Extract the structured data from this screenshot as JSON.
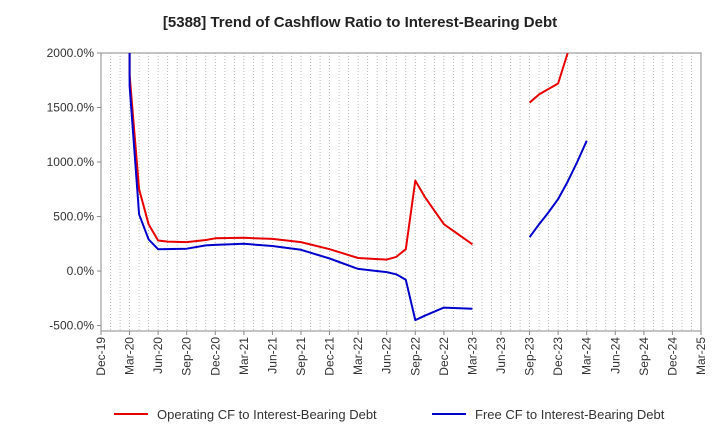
{
  "chart_data": {
    "type": "line",
    "title": "[5388]  Trend of Cashflow Ratio to Interest-Bearing Debt",
    "xlabel": "",
    "ylabel": "",
    "x_ticks": [
      "Dec-19",
      "Mar-20",
      "Jun-20",
      "Sep-20",
      "Dec-20",
      "Mar-21",
      "Jun-21",
      "Sep-21",
      "Dec-21",
      "Mar-22",
      "Jun-22",
      "Sep-22",
      "Dec-22",
      "Mar-23",
      "Jun-23",
      "Sep-23",
      "Dec-23",
      "Mar-24",
      "Jun-24",
      "Sep-24",
      "Dec-24",
      "Mar-25"
    ],
    "y_ticks": [
      "2000.0%",
      "1500.0%",
      "1000.0%",
      "500.0%",
      "0.0%",
      "-500.0%"
    ],
    "ylim": [
      -550,
      2000
    ],
    "grid": "vertical dotted",
    "legend_position": "bottom",
    "series": [
      {
        "name": "Operating CF to Interest-Bearing Debt",
        "color": "#e60000",
        "segments": [
          [
            [
              "Mar-20",
              2000
            ],
            [
              "Mar-20",
              1800
            ],
            [
              "Apr-20",
              750
            ],
            [
              "May-20",
              430
            ],
            [
              "Jun-20",
              280
            ],
            [
              "Jul-20",
              270
            ],
            [
              "Sep-20",
              265
            ],
            [
              "Nov-20",
              285
            ],
            [
              "Dec-20",
              300
            ],
            [
              "Mar-21",
              305
            ],
            [
              "Jun-21",
              295
            ],
            [
              "Sep-21",
              265
            ],
            [
              "Dec-21",
              200
            ],
            [
              "Mar-22",
              120
            ],
            [
              "Jun-22",
              105
            ],
            [
              "Jul-22",
              130
            ],
            [
              "Aug-22",
              200
            ],
            [
              "Sep-22",
              830
            ],
            [
              "Oct-22",
              680
            ],
            [
              "Dec-22",
              430
            ],
            [
              "Mar-23",
              245
            ]
          ],
          [
            [
              "Sep-23",
              1545
            ],
            [
              "Oct-23",
              1620
            ],
            [
              "Dec-23",
              1720
            ],
            [
              "Jan-24",
              2000
            ]
          ]
        ]
      },
      {
        "name": "Free CF to Interest-Bearing Debt",
        "color": "#0000cc",
        "segments": [
          [
            [
              "Mar-20",
              2000
            ],
            [
              "Mar-20",
              1700
            ],
            [
              "Apr-20",
              520
            ],
            [
              "May-20",
              290
            ],
            [
              "Jun-20",
              200
            ],
            [
              "Sep-20",
              205
            ],
            [
              "Nov-20",
              235
            ],
            [
              "Dec-20",
              240
            ],
            [
              "Mar-21",
              250
            ],
            [
              "Jun-21",
              230
            ],
            [
              "Sep-21",
              195
            ],
            [
              "Dec-21",
              115
            ],
            [
              "Mar-22",
              20
            ],
            [
              "Jun-22",
              -10
            ],
            [
              "Jul-22",
              -30
            ],
            [
              "Aug-22",
              -80
            ],
            [
              "Sep-22",
              -450
            ],
            [
              "Oct-22",
              -410
            ],
            [
              "Dec-22",
              -335
            ],
            [
              "Mar-23",
              -345
            ]
          ],
          [
            [
              "Sep-23",
              310
            ],
            [
              "Oct-23",
              430
            ],
            [
              "Nov-23",
              540
            ],
            [
              "Dec-23",
              660
            ],
            [
              "Jan-24",
              820
            ],
            [
              "Feb-24",
              1000
            ],
            [
              "Mar-24",
              1195
            ]
          ]
        ]
      }
    ]
  }
}
